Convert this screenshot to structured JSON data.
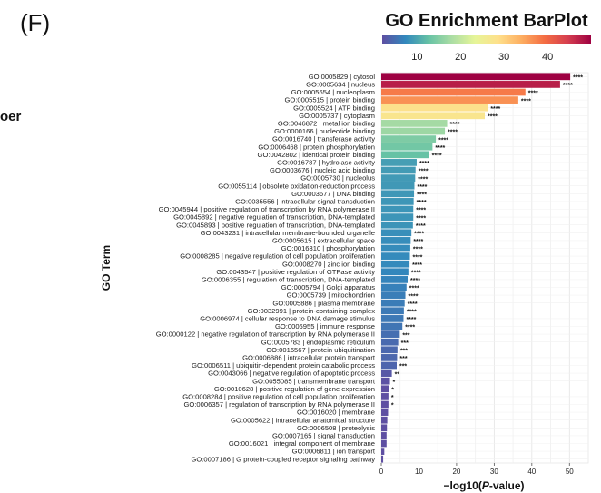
{
  "panel_label": "(F)",
  "side_fragment": "oer",
  "chart_data": {
    "type": "bar",
    "orientation": "horizontal",
    "title": "GO Enrichment BarPlot",
    "xlabel_prefix": "−log10(",
    "xlabel_italic": "P",
    "xlabel_suffix": "-value)",
    "ylabel": "GO Term",
    "xlim": [
      0,
      55
    ],
    "xticks": [
      0,
      10,
      20,
      30,
      40,
      50
    ],
    "grid": true,
    "colorbar": {
      "ticks": [
        10,
        20,
        30,
        40
      ],
      "range": [
        2,
        50
      ],
      "colors": [
        "#5e4fa2",
        "#3288bd",
        "#66c2a5",
        "#abdda4",
        "#e6f598",
        "#fee08b",
        "#fdae61",
        "#f46d43",
        "#d53e4f",
        "#9e0142"
      ]
    },
    "categories": [
      "GO:0005829 | cytosol",
      "GO:0005634 | nucleus",
      "GO:0005654 | nucleoplasm",
      "GO:0005515 | protein binding",
      "GO:0005524 | ATP binding",
      "GO:0005737 | cytoplasm",
      "GO:0046872 | metal ion binding",
      "GO:0000166 | nucleotide binding",
      "GO:0016740 | transferase activity",
      "GO:0006468 | protein phosphorylation",
      "GO:0042802 | identical protein binding",
      "GO:0016787 | hydrolase activity",
      "GO:0003676 | nucleic acid binding",
      "GO:0005730 | nucleolus",
      "GO:0055114 | obsolete oxidation-reduction process",
      "GO:0003677 | DNA binding",
      "GO:0035556 | intracellular signal transduction",
      "GO:0045944 | positive regulation of transcription by RNA polymerase II",
      "GO:0045892 | negative regulation of transcription, DNA-templated",
      "GO:0045893 | positive regulation of transcription, DNA-templated",
      "GO:0043231 | intracellular membrane-bounded organelle",
      "GO:0005615 | extracellular space",
      "GO:0016310 | phosphorylation",
      "GO:0008285 | negative regulation of cell population proliferation",
      "GO:0008270 | zinc ion binding",
      "GO:0043547 | positive regulation of GTPase activity",
      "GO:0006355 | regulation of transcription, DNA-templated",
      "GO:0005794 | Golgi apparatus",
      "GO:0005739 | mitochondrion",
      "GO:0005886 | plasma membrane",
      "GO:0032991 | protein-containing complex",
      "GO:0006974 | cellular response to DNA damage stimulus",
      "GO:0006955 | immune response",
      "GO:0000122 | negative regulation of transcription by RNA polymerase II",
      "GO:0005783 | endoplasmic reticulum",
      "GO:0016567 | protein ubiquitination",
      "GO:0006886 | intracellular protein transport",
      "GO:0006511 | ubiquitin-dependent protein catabolic process",
      "GO:0043066 | negative regulation of apoptotic process",
      "GO:0055085 | transmembrane transport",
      "GO:0010628 | positive regulation of gene expression",
      "GO:0008284 | positive regulation of cell population proliferation",
      "GO:0006357 | regulation of transcription by RNA polymerase II",
      "GO:0016020 | membrane",
      "GO:0005622 | intracellular anatomical structure",
      "GO:0006508 | proteolysis",
      "GO:0007165 | signal transduction",
      "GO:0016021 | integral component of membrane",
      "GO:0006811 | ion transport",
      "GO:0007186 | G protein-coupled receptor signaling pathway"
    ],
    "values": [
      50.2,
      47.5,
      38.3,
      36.4,
      28.3,
      27.5,
      17.5,
      16.9,
      14.5,
      13.6,
      12.7,
      9.4,
      9.1,
      9.0,
      8.8,
      8.7,
      8.6,
      8.5,
      8.5,
      8.4,
      8.0,
      7.8,
      7.7,
      7.6,
      7.5,
      7.2,
      7.0,
      6.7,
      6.4,
      6.2,
      6.0,
      5.9,
      5.6,
      4.9,
      4.5,
      4.3,
      4.2,
      4.1,
      2.8,
      2.3,
      2.0,
      1.9,
      1.9,
      1.8,
      1.6,
      1.5,
      1.4,
      1.4,
      0.8,
      0.5
    ],
    "significance": [
      "****",
      "****",
      "****",
      "****",
      "****",
      "****",
      "****",
      "****",
      "****",
      "****",
      "****",
      "****",
      "****",
      "****",
      "****",
      "****",
      "****",
      "****",
      "****",
      "****",
      "****",
      "****",
      "****",
      "****",
      "****",
      "****",
      "****",
      "****",
      "****",
      "****",
      "****",
      "****",
      "****",
      "***",
      "***",
      "***",
      "***",
      "***",
      "**",
      "*",
      "*",
      "*",
      "*",
      "",
      "",
      "",
      "",
      "",
      "",
      ""
    ]
  }
}
